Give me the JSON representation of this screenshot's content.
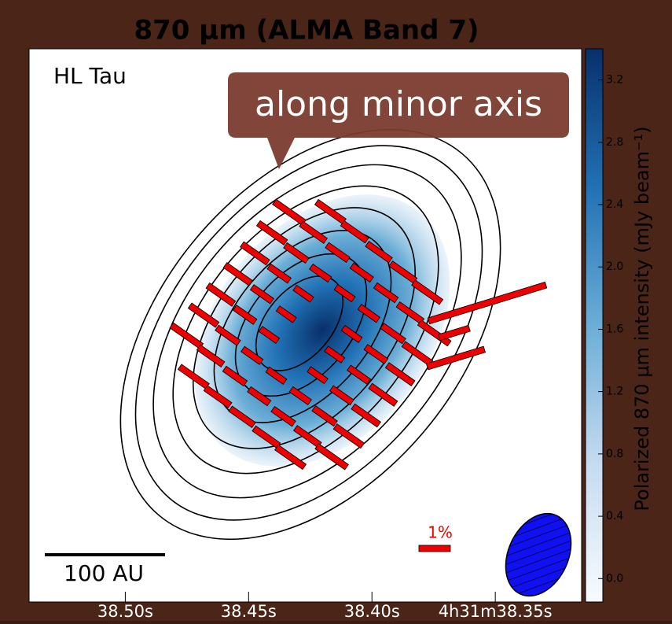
{
  "chart_data": {
    "type": "polarization-map",
    "title": "870 μm (ALMA Band 7)",
    "source_label": "HL Tau",
    "callout": "along minor axis",
    "scale_bar_label": "100 AU",
    "vector_scale_label": "1%",
    "colorbar_label": "Polarized 870 μm intensity (mJy beam⁻¹)",
    "clim": [
      -0.15,
      3.4
    ],
    "cticks": [
      0.0,
      0.4,
      0.8,
      1.2,
      1.6,
      2.0,
      2.4,
      2.8,
      3.2
    ],
    "colormap": [
      "#f7fbff",
      "#c6dbef",
      "#6baed6",
      "#2171b5",
      "#08306b"
    ],
    "xlim": [
      38.539,
      38.315
    ],
    "xticks": [
      {
        "value": 38.5,
        "label": "38.50s"
      },
      {
        "value": 38.45,
        "label": "38.45s"
      },
      {
        "value": 38.4,
        "label": "38.40s"
      },
      {
        "value": 38.35,
        "label": "4h31m38.35s"
      }
    ]
  }
}
